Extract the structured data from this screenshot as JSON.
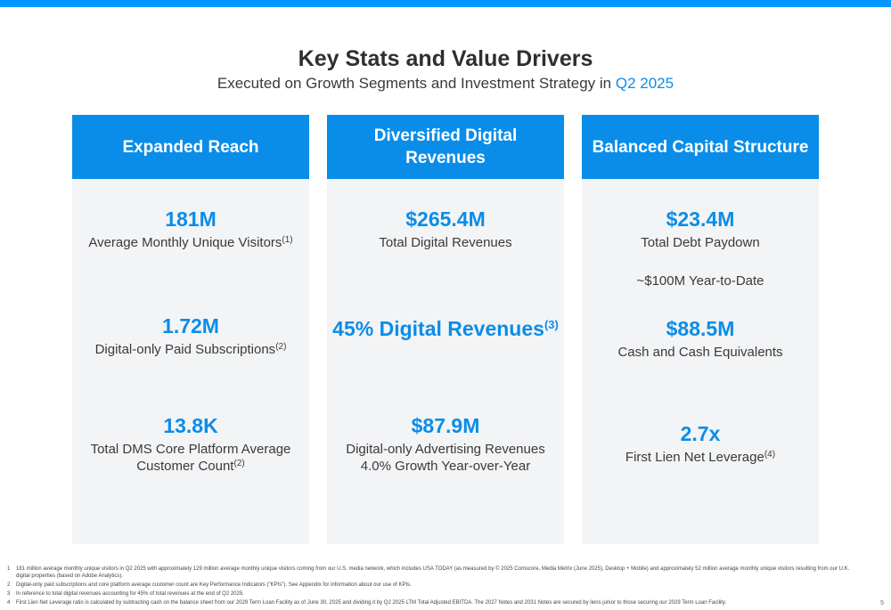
{
  "title": "Key Stats and Value Drivers",
  "subtitle": {
    "text": "Executed on Growth Segments and Investment Strategy in ",
    "highlight": "Q2 2025"
  },
  "colors": {
    "accent": "#0a8de8",
    "top_bar": "#0098ff",
    "panel_bg": "#f3f4f6"
  },
  "columns": [
    {
      "header": "Expanded Reach",
      "stats": [
        {
          "value": "181M",
          "label": "Average Monthly Unique Visitors",
          "note": "(1)"
        },
        {
          "value": "1.72M",
          "label": "Digital-only Paid Subscriptions",
          "note": "(2)"
        },
        {
          "value": "13.8K",
          "label_line1": "Total DMS Core Platform Average",
          "label_line2": "Customer Count",
          "note": "(2)"
        }
      ]
    },
    {
      "header_line1": "Diversified Digital",
      "header_line2": "Revenues",
      "stats": [
        {
          "value": "$265.4M",
          "label": "Total Digital Revenues"
        },
        {
          "value": "45% Digital Revenues",
          "note": "(3)"
        },
        {
          "value": "$87.9M",
          "label_line1": "Digital-only Advertising Revenues",
          "label_line2": "4.0% Growth Year-over-Year"
        }
      ]
    },
    {
      "header": "Balanced Capital Structure",
      "stats": [
        {
          "value": "$23.4M",
          "label": "Total Debt Paydown",
          "extra": "~$100M Year-to-Date"
        },
        {
          "value": "$88.5M",
          "label": "Cash and Cash Equivalents"
        },
        {
          "value": "2.7x",
          "label": "First Lien Net Leverage",
          "note": "(4)"
        }
      ]
    }
  ],
  "footnotes": [
    {
      "num": "1",
      "text": "181 million average monthly unique visitors in Q2 2025 with approximately 129 million average monthly unique visitors coming from our U.S. media network, which includes USA TODAY (as measured by © 2025 Comscore, Media Metrix (June 2025), Desktop + Mobile) and approximately 52 million average monthly unique visitors resulting from our U.K. digital properties (based on Adobe Analytics)."
    },
    {
      "num": "2",
      "text": "Digital-only paid subscriptions and core platform average customer count are Key Performance Indicators (\"KPIs\"). See Appendix for information about our use of KPIs."
    },
    {
      "num": "3",
      "text": "In reference to total digital revenues accounting for 45% of total revenues at the end of Q2 2025."
    },
    {
      "num": "4",
      "text": "First Lien Net Leverage ratio is calculated by subtracting cash on the balance sheet from our 2029 Term Loan Facility as of June 30, 2025 and dividing it by Q2 2025 LTM Total Adjusted EBITDA. The 2027 Notes and 2031 Notes are secured by liens junior to those securing our 2029 Term Loan Facility."
    }
  ],
  "page_number": "5"
}
